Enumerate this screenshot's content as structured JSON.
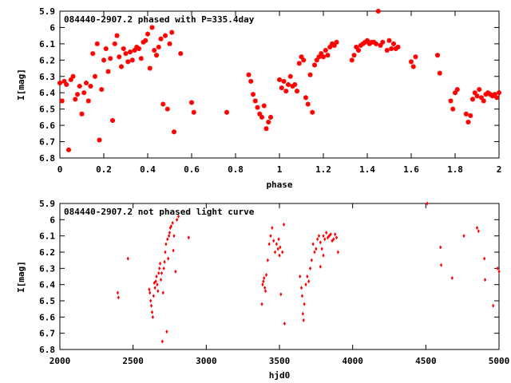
{
  "chart_data": [
    {
      "type": "scatter",
      "title": "084440-2907.2 phased with P=335.4day",
      "xlabel": "phase",
      "ylabel": "I[mag]",
      "xlim": [
        0,
        2
      ],
      "ylim": [
        6.8,
        5.9
      ],
      "y_inverted": true,
      "xticks": [
        0,
        0.2,
        0.4,
        0.6,
        0.8,
        1,
        1.2,
        1.4,
        1.6,
        1.8,
        2
      ],
      "yticks": [
        5.9,
        6,
        6.1,
        6.2,
        6.3,
        6.4,
        6.5,
        6.6,
        6.7,
        6.8
      ],
      "grid": false,
      "marker_color": "#ff0000",
      "marker": "star",
      "series": [
        {
          "x": [
            0.0,
            0.01,
            0.02,
            0.03,
            0.04,
            0.05,
            0.06,
            0.07,
            0.08,
            0.09,
            0.1,
            0.11,
            0.12,
            0.13,
            0.14,
            0.15,
            0.16,
            0.17,
            0.18,
            0.19,
            0.2,
            0.21,
            0.22,
            0.23,
            0.24,
            0.25,
            0.26,
            0.27,
            0.28,
            0.29,
            0.3,
            0.31,
            0.32,
            0.33,
            0.34,
            0.35,
            0.36,
            0.37,
            0.38,
            0.39,
            0.4,
            0.41,
            0.42,
            0.43,
            0.44,
            0.45,
            0.46,
            0.47,
            0.48,
            0.49,
            0.5,
            0.51,
            0.52,
            0.55,
            0.6,
            0.61,
            0.76,
            0.86,
            0.87,
            0.88,
            0.89,
            0.9,
            0.91,
            0.92,
            0.93,
            0.94,
            0.95,
            0.96,
            1.0,
            1.01,
            1.02,
            1.03,
            1.04,
            1.05,
            1.06,
            1.07,
            1.08,
            1.09,
            1.1,
            1.11,
            1.12,
            1.13,
            1.14,
            1.15,
            1.16,
            1.17,
            1.18,
            1.19,
            1.2,
            1.21,
            1.22,
            1.23,
            1.24,
            1.25,
            1.26,
            1.33,
            1.34,
            1.35,
            1.36,
            1.37,
            1.38,
            1.39,
            1.4,
            1.41,
            1.42,
            1.43,
            1.44,
            1.45,
            1.46,
            1.47,
            1.49,
            1.5,
            1.51,
            1.52,
            1.53,
            1.54,
            1.6,
            1.61,
            1.62,
            1.72,
            1.73,
            1.78,
            1.79,
            1.8,
            1.81,
            1.85,
            1.86,
            1.87,
            1.88,
            1.89,
            1.9,
            1.91,
            1.92,
            1.93,
            1.94,
            1.95,
            1.96,
            1.97,
            1.98,
            1.99,
            2.0
          ],
          "y": [
            6.34,
            6.45,
            6.33,
            6.35,
            6.75,
            6.32,
            6.3,
            6.44,
            6.41,
            6.36,
            6.53,
            6.4,
            6.34,
            6.45,
            6.36,
            6.16,
            6.3,
            6.1,
            6.69,
            6.38,
            6.2,
            6.13,
            6.27,
            6.19,
            6.57,
            6.1,
            6.05,
            6.18,
            6.24,
            6.13,
            6.16,
            6.21,
            6.15,
            6.2,
            6.14,
            6.12,
            6.13,
            6.19,
            6.09,
            6.08,
            6.04,
            6.25,
            6.0,
            6.14,
            6.17,
            6.12,
            6.07,
            6.47,
            6.05,
            6.5,
            6.1,
            6.03,
            6.64,
            6.16,
            6.46,
            6.52,
            6.52,
            6.29,
            6.33,
            6.41,
            6.45,
            6.49,
            6.53,
            6.55,
            6.48,
            6.62,
            6.58,
            6.55,
            6.32,
            6.37,
            6.33,
            6.39,
            6.35,
            6.3,
            6.36,
            6.35,
            6.39,
            6.22,
            6.18,
            6.2,
            6.43,
            6.47,
            6.29,
            6.52,
            6.23,
            6.2,
            6.18,
            6.16,
            6.18,
            6.14,
            6.17,
            6.12,
            6.1,
            6.11,
            6.09,
            6.2,
            6.17,
            6.12,
            6.14,
            6.11,
            6.1,
            6.09,
            6.08,
            6.1,
            6.09,
            6.09,
            6.1,
            5.9,
            6.11,
            6.09,
            6.14,
            6.08,
            6.13,
            6.1,
            6.13,
            6.12,
            6.21,
            6.24,
            6.18,
            6.17,
            6.28,
            6.45,
            6.5,
            6.4,
            6.38,
            6.53,
            6.58,
            6.54,
            6.44,
            6.4,
            6.42,
            6.38,
            6.43,
            6.45,
            6.41,
            6.4,
            6.41,
            6.42,
            6.41,
            6.43,
            6.4
          ]
        }
      ]
    },
    {
      "type": "scatter",
      "title": "084440-2907.2 not phased light curve",
      "xlabel": "hjd0",
      "ylabel": "I[mag]",
      "xlim": [
        2000,
        5000
      ],
      "ylim": [
        6.8,
        5.9
      ],
      "y_inverted": true,
      "xticks": [
        2000,
        2500,
        3000,
        3500,
        4000,
        4500,
        5000
      ],
      "yticks": [
        5.9,
        6,
        6.1,
        6.2,
        6.3,
        6.4,
        6.5,
        6.6,
        6.7,
        6.8
      ],
      "grid": false,
      "marker_color": "#ff0000",
      "marker": "diamond",
      "series": [
        {
          "x": [
            2395,
            2400,
            2465,
            2610,
            2615,
            2620,
            2625,
            2630,
            2635,
            2640,
            2645,
            2650,
            2655,
            2660,
            2665,
            2670,
            2675,
            2680,
            2685,
            2690,
            2695,
            2700,
            2705,
            2710,
            2715,
            2720,
            2725,
            2730,
            2735,
            2740,
            2745,
            2750,
            2755,
            2760,
            2770,
            2775,
            2780,
            2790,
            2800,
            2810,
            2880,
            3380,
            3385,
            3390,
            3395,
            3400,
            3405,
            3410,
            3420,
            3430,
            3440,
            3450,
            3460,
            3470,
            3480,
            3490,
            3495,
            3500,
            3505,
            3510,
            3520,
            3530,
            3535,
            3640,
            3650,
            3655,
            3660,
            3665,
            3670,
            3680,
            3690,
            3700,
            3710,
            3720,
            3730,
            3740,
            3750,
            3760,
            3770,
            3780,
            3790,
            3800,
            3810,
            3820,
            3830,
            3840,
            3850,
            3860,
            3870,
            3880,
            3890,
            3900,
            3780,
            3800,
            4510,
            4600,
            4605,
            4680,
            4760,
            4850,
            4860,
            4900,
            4905,
            4960,
            4990,
            5000
          ],
          "y": [
            6.45,
            6.48,
            6.24,
            6.43,
            6.45,
            6.5,
            6.53,
            6.57,
            6.6,
            6.47,
            6.39,
            6.42,
            6.38,
            6.35,
            6.4,
            6.44,
            6.33,
            6.3,
            6.27,
            6.37,
            6.33,
            6.75,
            6.45,
            6.3,
            6.26,
            6.2,
            6.15,
            6.69,
            6.12,
            6.24,
            6.1,
            6.08,
            6.05,
            6.04,
            6.02,
            6.19,
            6.1,
            6.32,
            6.0,
            5.98,
            6.11,
            6.52,
            6.4,
            6.38,
            6.36,
            6.42,
            6.44,
            6.34,
            6.25,
            6.15,
            6.1,
            6.05,
            6.13,
            6.2,
            6.15,
            6.18,
            6.12,
            6.22,
            6.17,
            6.46,
            6.2,
            6.03,
            6.64,
            6.35,
            6.42,
            6.47,
            6.58,
            6.62,
            6.52,
            6.4,
            6.35,
            6.38,
            6.3,
            6.25,
            6.15,
            6.2,
            6.18,
            6.12,
            6.1,
            6.14,
            6.18,
            6.1,
            6.12,
            6.08,
            6.11,
            6.1,
            6.09,
            6.13,
            6.12,
            6.09,
            6.11,
            6.2,
            6.29,
            6.22,
            5.9,
            6.17,
            6.28,
            6.36,
            6.1,
            6.05,
            6.07,
            6.24,
            6.37,
            6.53,
            6.3,
            6.32
          ]
        }
      ]
    }
  ]
}
